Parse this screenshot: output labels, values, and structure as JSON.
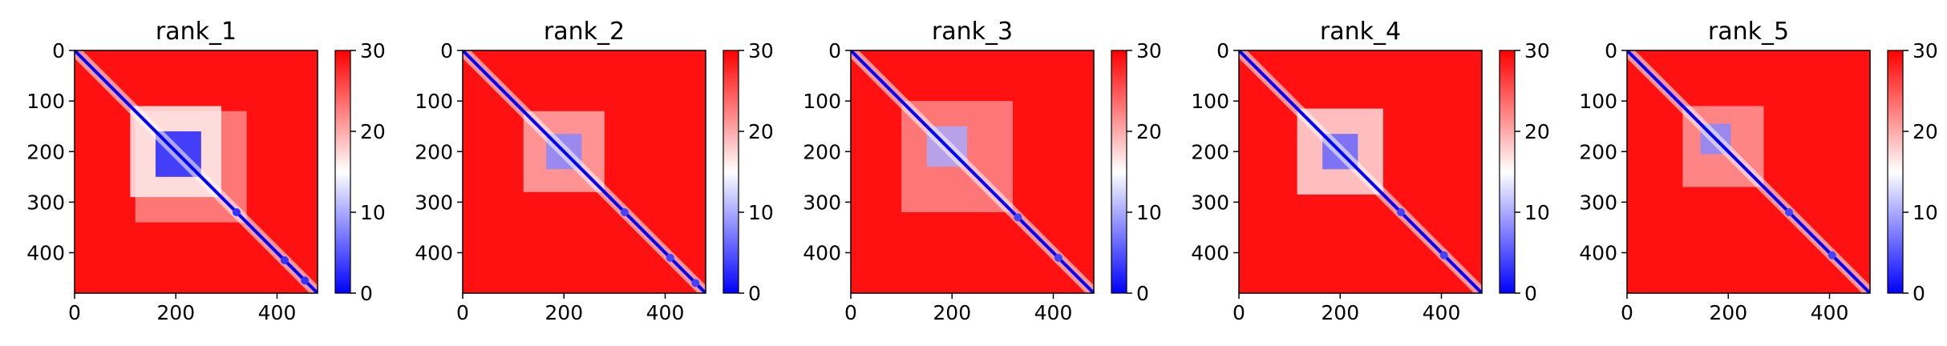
{
  "chart_data": [
    {
      "type": "heatmap",
      "title": "rank_1",
      "x_ticks": [
        0,
        200,
        400
      ],
      "y_ticks": [
        0,
        100,
        200,
        300,
        400
      ],
      "xlim": [
        0,
        480
      ],
      "ylim": [
        480,
        0
      ],
      "matrix_size": 480,
      "colormap": "bwr",
      "colorbar": {
        "range": [
          0,
          30
        ],
        "ticks": [
          0,
          10,
          20,
          30
        ]
      },
      "background_value": 29,
      "diagonal_value": 0,
      "features": [
        {
          "kind": "block",
          "center": 205,
          "half_width": 45,
          "value": 2
        },
        {
          "kind": "block",
          "center": 200,
          "half_width": 90,
          "value": 16
        },
        {
          "kind": "block",
          "center": 230,
          "half_width": 110,
          "value": 22
        },
        {
          "kind": "node",
          "center": 320,
          "value": 3
        },
        {
          "kind": "node",
          "center": 415,
          "value": 3
        },
        {
          "kind": "node",
          "center": 455,
          "value": 3
        }
      ]
    },
    {
      "type": "heatmap",
      "title": "rank_2",
      "x_ticks": [
        0,
        200,
        400
      ],
      "y_ticks": [
        0,
        100,
        200,
        300,
        400
      ],
      "xlim": [
        0,
        480
      ],
      "ylim": [
        480,
        0
      ],
      "matrix_size": 480,
      "colormap": "bwr",
      "colorbar": {
        "range": [
          0,
          30
        ],
        "ticks": [
          0,
          10,
          20,
          30
        ]
      },
      "background_value": 29,
      "diagonal_value": 0,
      "features": [
        {
          "kind": "block",
          "center": 200,
          "half_width": 35,
          "value": 8
        },
        {
          "kind": "block",
          "center": 200,
          "half_width": 80,
          "value": 20
        },
        {
          "kind": "node",
          "center": 320,
          "value": 4
        },
        {
          "kind": "node",
          "center": 410,
          "value": 4
        },
        {
          "kind": "node",
          "center": 460,
          "value": 4
        }
      ]
    },
    {
      "type": "heatmap",
      "title": "rank_3",
      "x_ticks": [
        0,
        200,
        400
      ],
      "y_ticks": [
        0,
        100,
        200,
        300,
        400
      ],
      "xlim": [
        0,
        480
      ],
      "ylim": [
        480,
        0
      ],
      "matrix_size": 480,
      "colormap": "bwr",
      "colorbar": {
        "range": [
          0,
          30
        ],
        "ticks": [
          0,
          10,
          20,
          30
        ]
      },
      "background_value": 29,
      "diagonal_value": 0,
      "features": [
        {
          "kind": "block",
          "center": 190,
          "half_width": 40,
          "value": 10
        },
        {
          "kind": "block",
          "center": 210,
          "half_width": 110,
          "value": 22
        },
        {
          "kind": "node",
          "center": 330,
          "value": 4
        },
        {
          "kind": "node",
          "center": 410,
          "value": 4
        }
      ]
    },
    {
      "type": "heatmap",
      "title": "rank_4",
      "x_ticks": [
        0,
        200,
        400
      ],
      "y_ticks": [
        0,
        100,
        200,
        300,
        400
      ],
      "xlim": [
        0,
        480
      ],
      "ylim": [
        480,
        0
      ],
      "matrix_size": 480,
      "colormap": "bwr",
      "colorbar": {
        "range": [
          0,
          30
        ],
        "ticks": [
          0,
          10,
          20,
          30
        ]
      },
      "background_value": 29,
      "diagonal_value": 0,
      "features": [
        {
          "kind": "block",
          "center": 200,
          "half_width": 35,
          "value": 6
        },
        {
          "kind": "block",
          "center": 200,
          "half_width": 85,
          "value": 17
        },
        {
          "kind": "node",
          "center": 320,
          "value": 4
        },
        {
          "kind": "node",
          "center": 405,
          "value": 4
        }
      ]
    },
    {
      "type": "heatmap",
      "title": "rank_5",
      "x_ticks": [
        0,
        200,
        400
      ],
      "y_ticks": [
        0,
        100,
        200,
        300,
        400
      ],
      "xlim": [
        0,
        480
      ],
      "ylim": [
        480,
        0
      ],
      "matrix_size": 480,
      "colormap": "bwr",
      "colorbar": {
        "range": [
          0,
          30
        ],
        "ticks": [
          0,
          10,
          20,
          30
        ]
      },
      "background_value": 29,
      "diagonal_value": 0,
      "features": [
        {
          "kind": "block",
          "center": 175,
          "half_width": 30,
          "value": 8
        },
        {
          "kind": "block",
          "center": 190,
          "half_width": 80,
          "value": 21
        },
        {
          "kind": "node",
          "center": 320,
          "value": 4
        },
        {
          "kind": "node",
          "center": 405,
          "value": 4
        }
      ]
    }
  ]
}
